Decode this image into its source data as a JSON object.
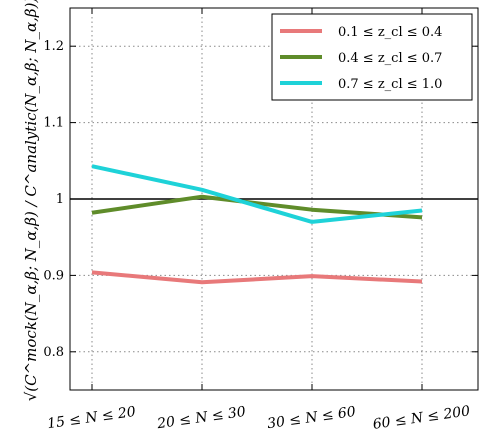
{
  "chart_data": {
    "type": "line",
    "categories": [
      "15 ≤ N ≤ 20",
      "20 ≤ N ≤ 30",
      "30 ≤ N ≤ 60",
      "60 ≤ N ≤ 200"
    ],
    "ylabel": "√(C^mock(N_α,β; N_α,β) / C^analytic(N_α,β; N_α,β))",
    "ylim": [
      0.75,
      1.25
    ],
    "yticks": [
      "0.8",
      "0.9",
      "1",
      "1.1",
      "1.2"
    ],
    "ytick_values": [
      0.8,
      0.9,
      1.0,
      1.1,
      1.2
    ],
    "grid": true,
    "reference_line": 1.0,
    "legend_position": "top-right",
    "series": [
      {
        "name": "0.1 ≤ z_cl ≤ 0.4",
        "color": "#e8797a",
        "values": [
          0.904,
          0.891,
          0.899,
          0.892
        ]
      },
      {
        "name": "0.4 ≤ z_cl ≤ 0.7",
        "color": "#5f8c2a",
        "values": [
          0.982,
          1.003,
          0.986,
          0.976
        ]
      },
      {
        "name": "0.7 ≤ z_cl ≤ 1.0",
        "color": "#1ed2d8",
        "values": [
          1.043,
          1.012,
          0.97,
          0.985
        ]
      }
    ]
  }
}
